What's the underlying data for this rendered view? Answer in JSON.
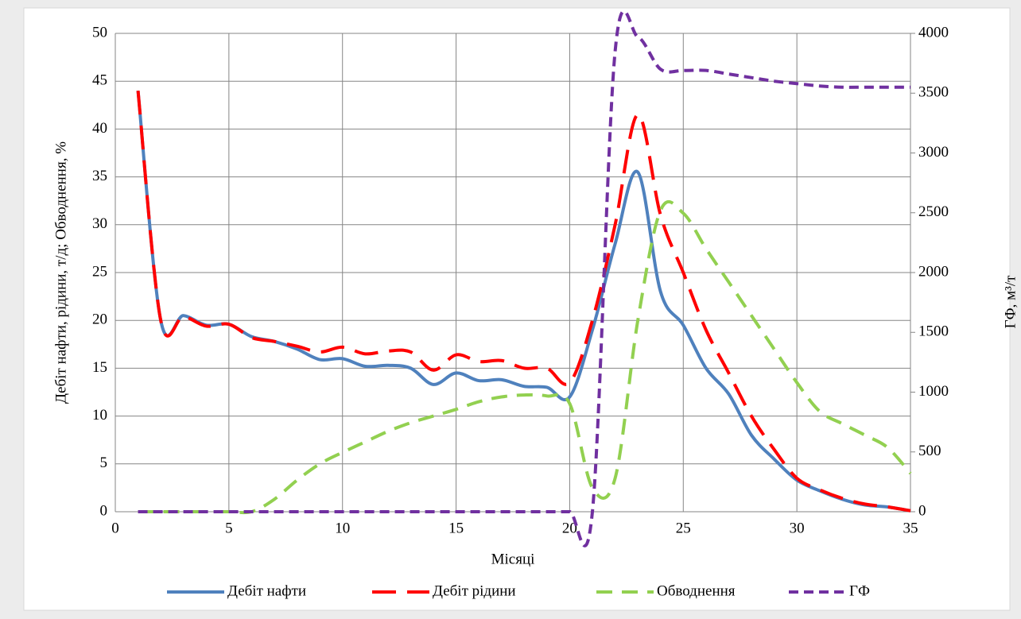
{
  "chart_data": {
    "type": "line",
    "x_label": "Місяці",
    "y_label": "Дебіт нафти, рідини, т/д; Обводнення, %",
    "y2_label": "ГФ, м³/т",
    "x": [
      1,
      2,
      3,
      4,
      5,
      6,
      7,
      8,
      9,
      10,
      11,
      12,
      13,
      14,
      15,
      16,
      17,
      18,
      19,
      20,
      21,
      22,
      23,
      24,
      25,
      26,
      27,
      28,
      29,
      30,
      31,
      32,
      33,
      34,
      35
    ],
    "series": [
      {
        "name": "Дебіт нафти",
        "color": "#4f81bd",
        "dash": "none",
        "values": [
          44,
          20,
          20.5,
          19.5,
          19.6,
          18.3,
          17.8,
          17,
          15.9,
          16,
          15.2,
          15.3,
          15,
          13.3,
          14.5,
          13.7,
          13.8,
          13.1,
          13,
          12,
          19,
          28,
          35.5,
          23,
          19.5,
          15,
          12.3,
          8,
          5.5,
          3.3,
          2.2,
          1.3,
          0.7,
          0.5,
          0.1
        ]
      },
      {
        "name": "Дебіт рідини",
        "color": "#ff0000",
        "dash": "30,14",
        "values": [
          44,
          20,
          20.4,
          19.4,
          19.6,
          18.2,
          17.8,
          17.3,
          16.7,
          17.2,
          16.5,
          16.8,
          16.7,
          14.8,
          16.4,
          15.7,
          15.8,
          15,
          15,
          13.5,
          20,
          30,
          41.5,
          31,
          25,
          19,
          14.5,
          10,
          6.5,
          3.5,
          2.3,
          1.4,
          0.8,
          0.5,
          0.1
        ]
      },
      {
        "name": "Обводнення",
        "color": "#92d050",
        "dash": "20,12",
        "values": [
          0,
          0,
          0,
          0,
          0,
          0,
          1.3,
          3.3,
          5,
          6.2,
          7.3,
          8.4,
          9.3,
          10,
          10.7,
          11.5,
          12,
          12.2,
          12.1,
          11.3,
          2.5,
          3.5,
          20,
          31.5,
          31.2,
          27.5,
          24,
          20.5,
          17,
          13.5,
          10.5,
          9.2,
          8,
          6.7,
          4
        ]
      },
      {
        "name": "ГФ",
        "color": "#7030a0",
        "dash": "12,7",
        "axis": "y2",
        "values": [
          0,
          0,
          0,
          0,
          0,
          0,
          0,
          0,
          0,
          0,
          0,
          0,
          0,
          0,
          0,
          0,
          0,
          0,
          0,
          0,
          0,
          3850,
          3970,
          3700,
          3690,
          3690,
          3660,
          3630,
          3600,
          3580,
          3560,
          3550,
          3550,
          3550,
          3550
        ]
      }
    ],
    "xlim": [
      0,
      35
    ],
    "xticks": [
      0,
      5,
      10,
      15,
      20,
      25,
      30,
      35
    ],
    "ylim": [
      0,
      50
    ],
    "yticks": [
      0,
      5,
      10,
      15,
      20,
      25,
      30,
      35,
      40,
      45,
      50
    ],
    "y2lim": [
      0,
      4000
    ],
    "y2ticks": [
      0,
      500,
      1000,
      1500,
      2000,
      2500,
      3000,
      3500,
      4000
    ],
    "grid": true,
    "legend": "bottom"
  }
}
